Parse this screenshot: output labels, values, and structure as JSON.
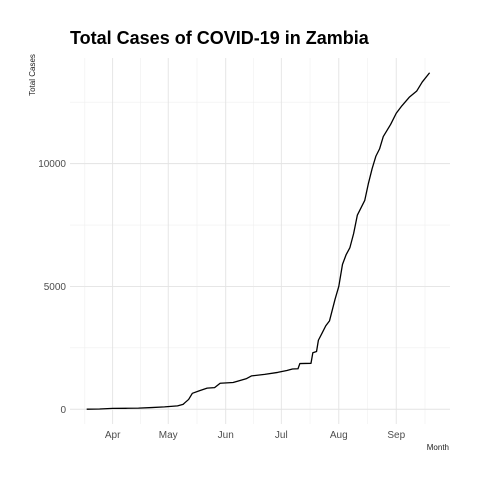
{
  "chart_data": {
    "type": "line",
    "title": "Total Cases of COVID-19 in Zambia",
    "xlabel": "Month",
    "ylabel": "Total Cases",
    "x_axis": {
      "type": "date",
      "range": [
        "2020-03-09",
        "2020-09-30"
      ],
      "ticks": [
        {
          "date": "2020-04-01",
          "label": "Apr"
        },
        {
          "date": "2020-05-01",
          "label": "May"
        },
        {
          "date": "2020-06-01",
          "label": "Jun"
        },
        {
          "date": "2020-07-01",
          "label": "Jul"
        },
        {
          "date": "2020-08-01",
          "label": "Aug"
        },
        {
          "date": "2020-09-01",
          "label": "Sep"
        }
      ]
    },
    "y_axis": {
      "range": [
        -600,
        14300
      ],
      "ticks": [
        0,
        5000,
        10000
      ]
    },
    "grid": true,
    "legend": "none",
    "line_color": "#000000",
    "series": [
      {
        "points": [
          [
            "2020-03-18",
            2
          ],
          [
            "2020-03-25",
            12
          ],
          [
            "2020-04-01",
            36
          ],
          [
            "2020-04-08",
            39
          ],
          [
            "2020-04-15",
            45
          ],
          [
            "2020-04-22",
            70
          ],
          [
            "2020-04-29",
            97
          ],
          [
            "2020-05-06",
            137
          ],
          [
            "2020-05-09",
            200
          ],
          [
            "2020-05-10",
            267
          ],
          [
            "2020-05-12",
            400
          ],
          [
            "2020-05-14",
            650
          ],
          [
            "2020-05-18",
            760
          ],
          [
            "2020-05-22",
            860
          ],
          [
            "2020-05-26",
            880
          ],
          [
            "2020-05-29",
            1060
          ],
          [
            "2020-06-05",
            1090
          ],
          [
            "2020-06-12",
            1240
          ],
          [
            "2020-06-15",
            1360
          ],
          [
            "2020-06-22",
            1420
          ],
          [
            "2020-06-29",
            1500
          ],
          [
            "2020-07-04",
            1580
          ],
          [
            "2020-07-07",
            1640
          ],
          [
            "2020-07-10",
            1650
          ],
          [
            "2020-07-11",
            1860
          ],
          [
            "2020-07-17",
            1870
          ],
          [
            "2020-07-18",
            2300
          ],
          [
            "2020-07-20",
            2350
          ],
          [
            "2020-07-21",
            2810
          ],
          [
            "2020-07-23",
            3100
          ],
          [
            "2020-07-25",
            3400
          ],
          [
            "2020-07-27",
            3600
          ],
          [
            "2020-07-30",
            4480
          ],
          [
            "2020-08-01",
            5000
          ],
          [
            "2020-08-03",
            5900
          ],
          [
            "2020-08-05",
            6300
          ],
          [
            "2020-08-07",
            6580
          ],
          [
            "2020-08-09",
            7150
          ],
          [
            "2020-08-11",
            7900
          ],
          [
            "2020-08-13",
            8200
          ],
          [
            "2020-08-15",
            8500
          ],
          [
            "2020-08-17",
            9200
          ],
          [
            "2020-08-19",
            9800
          ],
          [
            "2020-08-21",
            10300
          ],
          [
            "2020-08-23",
            10600
          ],
          [
            "2020-08-25",
            11100
          ],
          [
            "2020-08-27",
            11350
          ],
          [
            "2020-08-29",
            11600
          ],
          [
            "2020-09-01",
            12050
          ],
          [
            "2020-09-04",
            12350
          ],
          [
            "2020-09-08",
            12700
          ],
          [
            "2020-09-12",
            12950
          ],
          [
            "2020-09-15",
            13320
          ],
          [
            "2020-09-19",
            13700
          ]
        ]
      }
    ]
  }
}
